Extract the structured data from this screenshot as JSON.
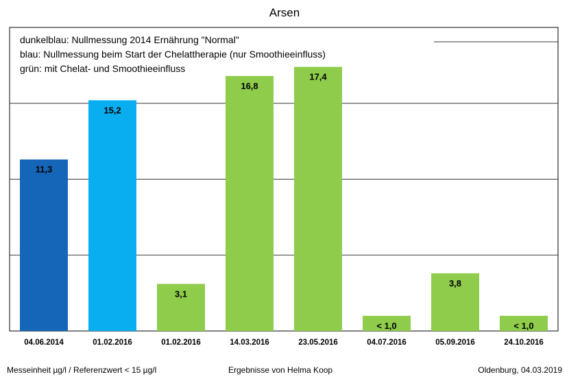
{
  "chart_data": {
    "type": "bar",
    "title": "Arsen",
    "categories": [
      "04.06.2014",
      "01.02.2016",
      "01.02.2016",
      "14.03.2016",
      "23.05.2016",
      "04.07.2016",
      "05.09.2016",
      "24.10.2016"
    ],
    "values": [
      11.3,
      15.2,
      3.1,
      16.8,
      17.4,
      1.0,
      3.8,
      1.0
    ],
    "data_labels": [
      "11,3",
      "15,2",
      "3,1",
      "16,8",
      "17,4",
      "< 1,0",
      "3,8",
      "< 1,0"
    ],
    "bar_colors": [
      "#1565b8",
      "#08aef0",
      "#8fcc4b",
      "#8fcc4b",
      "#8fcc4b",
      "#8fcc4b",
      "#8fcc4b",
      "#8fcc4b"
    ],
    "legend_lines": [
      "dunkelblau: Nullmessung 2014 Ernährung \"Normal\"",
      "blau: Nullmessung beim Start der Chelattherapie (nur Smoothieeinfluss)",
      "grün: mit Chelat- und Smoothieeinfluss"
    ],
    "ylim": [
      0,
      20
    ],
    "gridlines": [
      5,
      10,
      15,
      20
    ],
    "grid": true,
    "xlabel": "",
    "ylabel": ""
  },
  "footer": {
    "left": "Messeinheit µg/l / Referenzwert < 15 µg/l",
    "center": "Ergebnisse von Helma Koop",
    "right": "Oldenburg, 04.03.2019"
  },
  "colors": {
    "dark_blue": "#1565b8",
    "blue": "#08aef0",
    "green": "#8fcc4b",
    "gridline": "#3a3a3a",
    "border": "#000000"
  }
}
